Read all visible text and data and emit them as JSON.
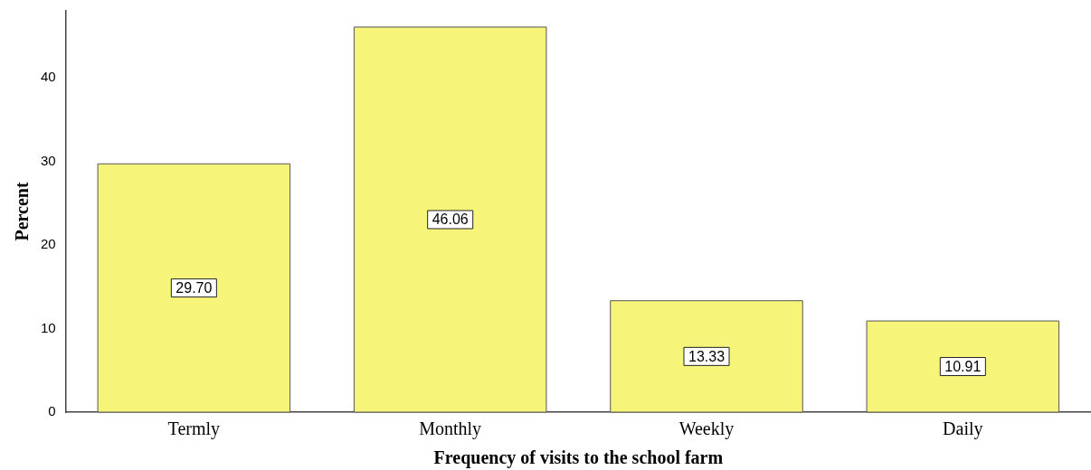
{
  "chart_data": {
    "type": "bar",
    "xlabel": "Frequency of visits to the school farm",
    "ylabel": "Percent",
    "categories": [
      "Termly",
      "Monthly",
      "Weekly",
      "Daily"
    ],
    "values": [
      29.7,
      46.06,
      13.33,
      10.91
    ],
    "value_labels": [
      "29.70",
      "46.06",
      "13.33",
      "10.91"
    ],
    "color": "#f7f47a",
    "ylim": [
      0,
      48
    ],
    "yticks": [
      0,
      10,
      20,
      30,
      40
    ],
    "grid": false,
    "legend": false
  }
}
